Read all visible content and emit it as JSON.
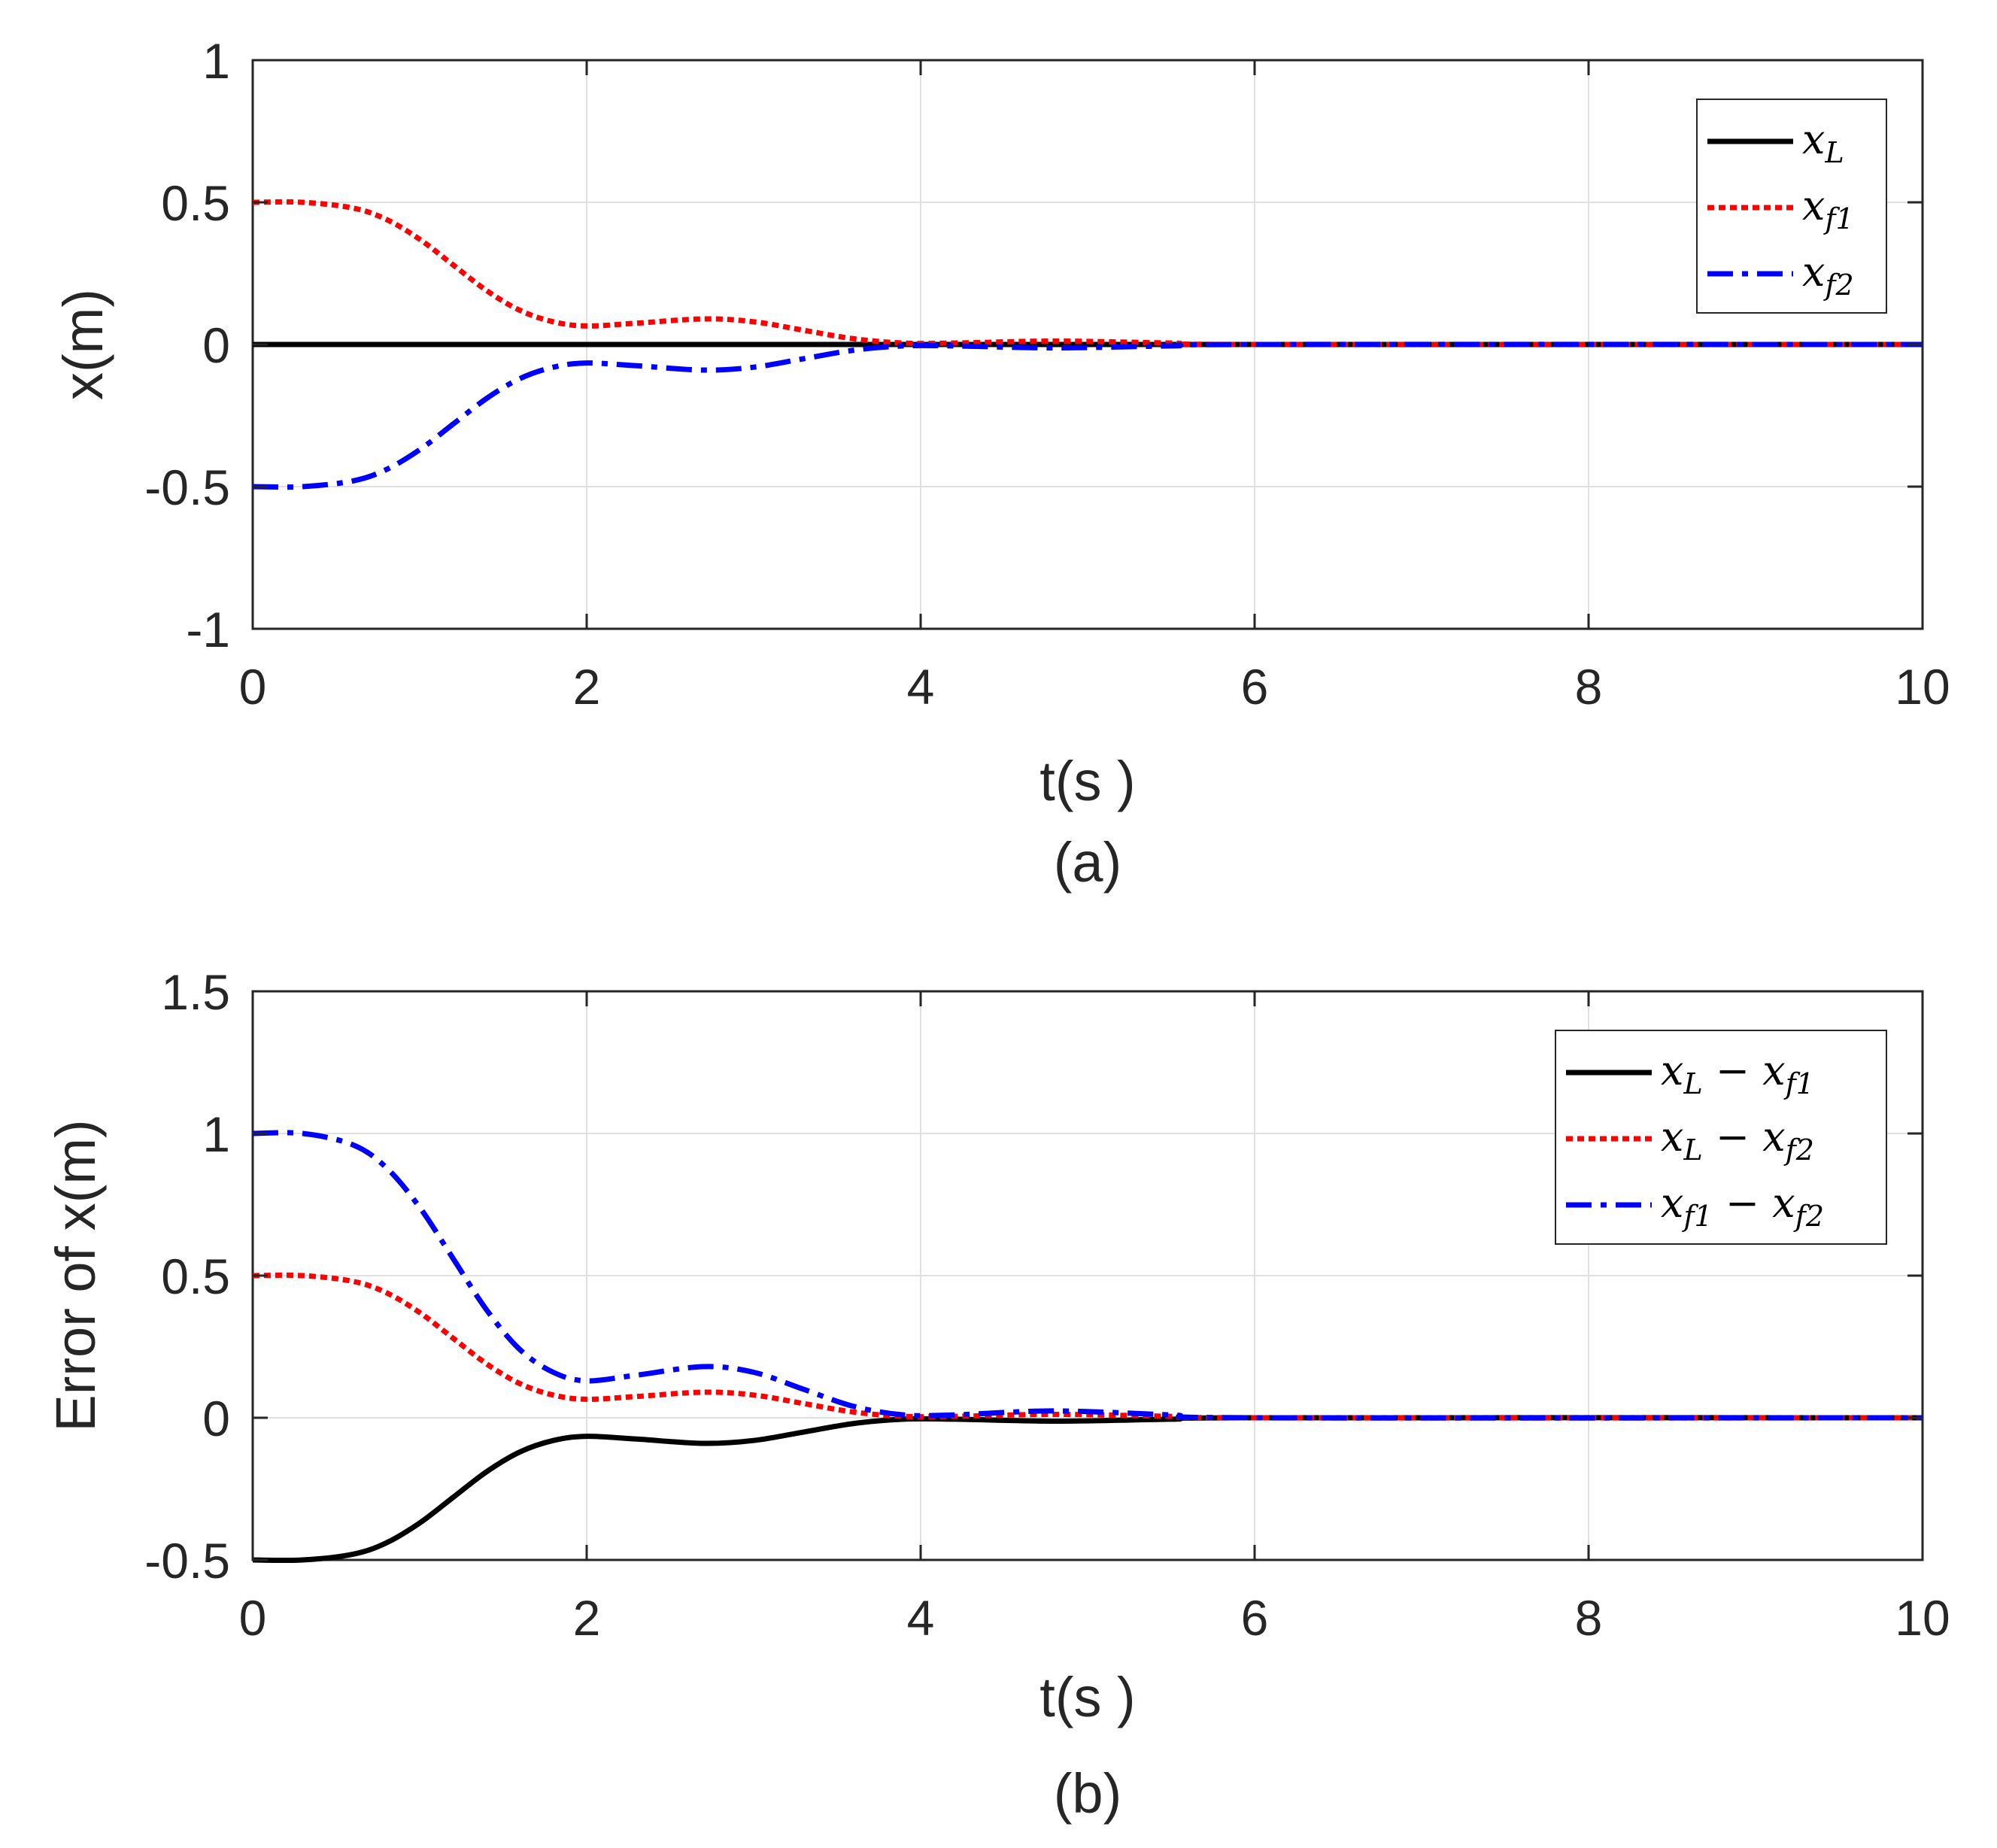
{
  "chart_data": [
    {
      "type": "line",
      "caption": "(a)",
      "xlabel": "t(s )",
      "ylabel": "x(m)",
      "xlim": [
        0,
        10
      ],
      "ylim": [
        -1,
        1
      ],
      "xticks": [
        0,
        2,
        4,
        6,
        8,
        10
      ],
      "xtick_labels": [
        "0",
        "2",
        "4",
        "6",
        "8",
        "10"
      ],
      "yticks": [
        -1,
        -0.5,
        0,
        0.5,
        1
      ],
      "ytick_labels": [
        "-1",
        "-0.5",
        "0",
        "0.5",
        "1"
      ],
      "grid": true,
      "legend_position": "top-right",
      "series": [
        {
          "name": "x_L",
          "legend": {
            "base": "x",
            "sub": "L"
          },
          "color": "#000000",
          "style": "solid",
          "x": [
            0,
            10
          ],
          "y": [
            0,
            0
          ]
        },
        {
          "name": "x_f1",
          "legend": {
            "base": "x",
            "sub": "f1"
          },
          "color": "#ff0000",
          "style": "dotted",
          "x": [
            0,
            0.3,
            0.6,
            0.8,
            1.0,
            1.2,
            1.4,
            1.6,
            1.8,
            2.0,
            2.3,
            2.7,
            3.0,
            3.3,
            3.6,
            3.9,
            4.2,
            4.8,
            5.5,
            6.0,
            10
          ],
          "y": [
            0.5,
            0.5,
            0.48,
            0.44,
            0.37,
            0.28,
            0.19,
            0.12,
            0.08,
            0.065,
            0.075,
            0.09,
            0.08,
            0.05,
            0.02,
            0.005,
            0.005,
            0.012,
            0.005,
            0.0,
            0.0
          ]
        },
        {
          "name": "x_f2",
          "legend": {
            "base": "x",
            "sub": "f2"
          },
          "color": "#0000ff",
          "style": "dashdot",
          "x": [
            0,
            0.3,
            0.6,
            0.8,
            1.0,
            1.2,
            1.4,
            1.6,
            1.8,
            2.0,
            2.3,
            2.7,
            3.0,
            3.3,
            3.6,
            3.9,
            4.2,
            4.8,
            5.5,
            6.0,
            10
          ],
          "y": [
            -0.5,
            -0.5,
            -0.48,
            -0.44,
            -0.37,
            -0.28,
            -0.19,
            -0.12,
            -0.08,
            -0.065,
            -0.075,
            -0.09,
            -0.08,
            -0.05,
            -0.02,
            -0.005,
            -0.005,
            -0.012,
            -0.005,
            0.0,
            0.0
          ]
        }
      ]
    },
    {
      "type": "line",
      "caption": "(b)",
      "xlabel": "t(s )",
      "ylabel": "Error of x(m)",
      "xlim": [
        0,
        10
      ],
      "ylim": [
        -0.5,
        1.5
      ],
      "xticks": [
        0,
        2,
        4,
        6,
        8,
        10
      ],
      "xtick_labels": [
        "0",
        "2",
        "4",
        "6",
        "8",
        "10"
      ],
      "yticks": [
        -0.5,
        0,
        0.5,
        1,
        1.5
      ],
      "ytick_labels": [
        "-0.5",
        "0",
        "0.5",
        "1",
        "1.5"
      ],
      "grid": true,
      "legend_position": "top-right",
      "series": [
        {
          "name": "x_L - x_f1",
          "legend": {
            "base": "x",
            "sub": "L",
            "op": "−",
            "base2": "x",
            "sub2": "f1"
          },
          "color": "#000000",
          "style": "solid",
          "x": [
            0,
            0.3,
            0.6,
            0.8,
            1.0,
            1.2,
            1.4,
            1.6,
            1.8,
            2.0,
            2.3,
            2.7,
            3.0,
            3.3,
            3.6,
            3.9,
            4.2,
            4.8,
            5.5,
            6.0,
            10
          ],
          "y": [
            -0.5,
            -0.5,
            -0.48,
            -0.44,
            -0.37,
            -0.28,
            -0.19,
            -0.12,
            -0.08,
            -0.065,
            -0.075,
            -0.09,
            -0.08,
            -0.05,
            -0.02,
            -0.005,
            -0.005,
            -0.012,
            -0.005,
            0.0,
            0.0
          ]
        },
        {
          "name": "x_L - x_f2",
          "legend": {
            "base": "x",
            "sub": "L",
            "op": "−",
            "base2": "x",
            "sub2": "f2"
          },
          "color": "#ff0000",
          "style": "dotted",
          "x": [
            0,
            0.3,
            0.6,
            0.8,
            1.0,
            1.2,
            1.4,
            1.6,
            1.8,
            2.0,
            2.3,
            2.7,
            3.0,
            3.3,
            3.6,
            3.9,
            4.2,
            4.8,
            5.5,
            6.0,
            10
          ],
          "y": [
            0.5,
            0.5,
            0.48,
            0.44,
            0.37,
            0.28,
            0.19,
            0.12,
            0.08,
            0.065,
            0.075,
            0.09,
            0.08,
            0.05,
            0.02,
            0.005,
            0.005,
            0.012,
            0.005,
            0.0,
            0.0
          ]
        },
        {
          "name": "x_f1 - x_f2",
          "legend": {
            "base": "x",
            "sub": "f1",
            "op": "−",
            "base2": "x",
            "sub2": "f2"
          },
          "color": "#0000ff",
          "style": "dashdot",
          "x": [
            0,
            0.3,
            0.6,
            0.8,
            1.0,
            1.2,
            1.4,
            1.6,
            1.8,
            2.0,
            2.3,
            2.7,
            3.0,
            3.3,
            3.6,
            3.9,
            4.2,
            4.8,
            5.5,
            6.0,
            10
          ],
          "y": [
            1.0,
            1.0,
            0.96,
            0.88,
            0.74,
            0.56,
            0.38,
            0.24,
            0.16,
            0.13,
            0.15,
            0.18,
            0.16,
            0.1,
            0.04,
            0.01,
            0.01,
            0.024,
            0.01,
            0.0,
            0.0
          ]
        }
      ]
    }
  ]
}
